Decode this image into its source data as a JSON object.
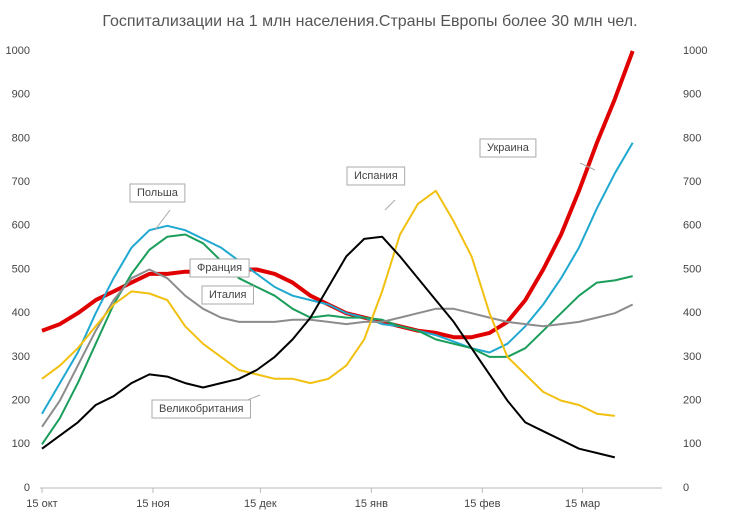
{
  "chart_data": {
    "type": "line",
    "title": "Госпитализации на 1 млн населения.Страны Европы более 30 млн чел.",
    "x": [
      0,
      5,
      10,
      15,
      20,
      25,
      30,
      35,
      40,
      45,
      50,
      55,
      60,
      65,
      70,
      75,
      80,
      85,
      90,
      95,
      100,
      105,
      110,
      115,
      120,
      125,
      130,
      135,
      140,
      145,
      150,
      155,
      160,
      165
    ],
    "xlim": [
      0,
      172
    ],
    "xticks": [
      {
        "value": 0,
        "label": "15 окт"
      },
      {
        "value": 31,
        "label": "15 ноя"
      },
      {
        "value": 61,
        "label": "15 дек"
      },
      {
        "value": 92,
        "label": "15 янв"
      },
      {
        "value": 123,
        "label": "15 фев"
      },
      {
        "value": 151,
        "label": "15 мар"
      }
    ],
    "ylim": [
      0,
      1000
    ],
    "yticks": [
      0,
      100,
      200,
      300,
      400,
      500,
      600,
      700,
      800,
      900,
      1000
    ],
    "y2lim": [
      0,
      1000
    ],
    "y2ticks": [
      0,
      100,
      200,
      300,
      400,
      500,
      600,
      700,
      800,
      900,
      1000
    ],
    "series": [
      {
        "name": "Украина",
        "color": "#e00000",
        "values": [
          360,
          375,
          400,
          430,
          450,
          470,
          490,
          490,
          495,
          495,
          515,
          500,
          500,
          490,
          470,
          440,
          420,
          400,
          390,
          380,
          370,
          360,
          355,
          345,
          345,
          355,
          380,
          430,
          500,
          580,
          680,
          790,
          890,
          1000
        ]
      },
      {
        "name": "Польша",
        "color": "#1fa8d0",
        "values": [
          170,
          240,
          310,
          400,
          480,
          550,
          590,
          600,
          590,
          570,
          550,
          520,
          490,
          460,
          440,
          430,
          420,
          400,
          390,
          375,
          370,
          360,
          350,
          335,
          320,
          310,
          330,
          370,
          420,
          480,
          550,
          640,
          720,
          790
        ]
      },
      {
        "name": "Франция",
        "color": "#1a9e5a",
        "values": [
          100,
          160,
          240,
          330,
          420,
          490,
          545,
          575,
          580,
          560,
          520,
          480,
          460,
          440,
          410,
          390,
          395,
          390,
          390,
          385,
          370,
          360,
          340,
          330,
          320,
          300,
          300,
          320,
          360,
          400,
          440,
          470,
          475,
          485
        ]
      },
      {
        "name": "Италия",
        "color": "#8c8c8c",
        "values": [
          140,
          200,
          280,
          360,
          430,
          480,
          500,
          480,
          440,
          410,
          390,
          380,
          380,
          380,
          385,
          385,
          380,
          375,
          380,
          380,
          390,
          400,
          410,
          410,
          400,
          390,
          380,
          375,
          370,
          375,
          380,
          390,
          400,
          420
        ]
      },
      {
        "name": "Испания",
        "color": "#f2c010",
        "values": [
          250,
          280,
          320,
          370,
          420,
          450,
          445,
          430,
          370,
          330,
          300,
          270,
          260,
          250,
          250,
          240,
          250,
          280,
          340,
          450,
          580,
          650,
          680,
          610,
          530,
          400,
          300,
          260,
          220,
          200,
          190,
          170,
          165,
          null
        ]
      },
      {
        "name": "Великобритания",
        "color": "#000000",
        "values": [
          90,
          120,
          150,
          190,
          210,
          240,
          260,
          255,
          240,
          230,
          240,
          250,
          270,
          300,
          340,
          390,
          460,
          530,
          570,
          575,
          530,
          480,
          430,
          380,
          320,
          260,
          200,
          150,
          130,
          110,
          90,
          80,
          70,
          null
        ]
      }
    ]
  }
}
